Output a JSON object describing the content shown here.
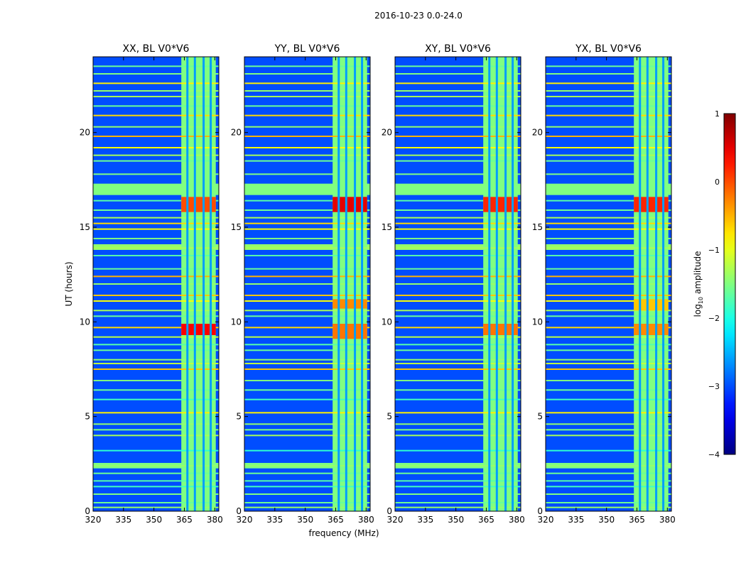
{
  "figure": {
    "suptitle": "2016-10-23 0.0-24.0",
    "xlabel": "frequency (MHz)",
    "ylabel": "UT (hours)",
    "colorbar_label_prefix": "log",
    "colorbar_label_sub": "10",
    "colorbar_label_suffix": " amplitude",
    "colorbar_ticks": [
      "1",
      "0",
      "−1",
      "−2",
      "−3",
      "−4"
    ]
  },
  "chart_data": {
    "type": "heatmap",
    "x": {
      "label": "frequency (MHz)",
      "range": [
        320,
        382
      ],
      "ticks": [
        320,
        335,
        350,
        365,
        380
      ]
    },
    "y": {
      "label": "UT (hours)",
      "range": [
        0,
        24
      ],
      "ticks": [
        0,
        5,
        10,
        15,
        20
      ]
    },
    "colorbar": {
      "label": "log10 amplitude",
      "range": [
        -4,
        1
      ],
      "ticks": [
        1,
        0,
        -1,
        -2,
        -3,
        -4
      ],
      "colormap": "jet"
    },
    "background_level": -3.0,
    "panels": [
      {
        "title": "XX, BL V0*V6",
        "band_peaks": [
          {
            "t0": 9.3,
            "t1": 9.9,
            "level": 0.4
          },
          {
            "t0": 15.8,
            "t1": 16.6,
            "level": 0.0
          }
        ]
      },
      {
        "title": "YY, BL V0*V6",
        "band_peaks": [
          {
            "t0": 9.1,
            "t1": 9.9,
            "level": -0.2
          },
          {
            "t0": 10.7,
            "t1": 11.2,
            "level": -0.3
          },
          {
            "t0": 15.8,
            "t1": 16.6,
            "level": 0.5
          }
        ]
      },
      {
        "title": "XY, BL V0*V6",
        "band_peaks": [
          {
            "t0": 9.3,
            "t1": 9.9,
            "level": -0.2
          },
          {
            "t0": 15.8,
            "t1": 16.6,
            "level": 0.2
          }
        ]
      },
      {
        "title": "YX, BL V0*V6",
        "band_peaks": [
          {
            "t0": 9.3,
            "t1": 9.9,
            "level": -0.3
          },
          {
            "t0": 10.6,
            "t1": 11.2,
            "level": -0.6
          },
          {
            "t0": 15.8,
            "t1": 16.6,
            "level": 0.2
          }
        ]
      }
    ],
    "rfi_band": {
      "f0": 363.5,
      "f1": 380.5,
      "level": -1.5
    },
    "rfi_band_gaps_mhz": [
      366.5,
      370.2,
      374.5,
      378.0
    ],
    "rfi_lines_ut": [
      {
        "t": 0.2,
        "level": -1.4
      },
      {
        "t": 0.45,
        "level": -1.6
      },
      {
        "t": 0.9,
        "level": -1.5
      },
      {
        "t": 1.3,
        "level": -1.8
      },
      {
        "t": 1.6,
        "level": -1.7
      },
      {
        "t": 2.0,
        "level": -1.6
      },
      {
        "t": 2.3,
        "level": -1.5
      },
      {
        "t": 2.4,
        "level": -1.4
      },
      {
        "t": 2.5,
        "level": -1.5
      },
      {
        "t": 3.2,
        "level": -1.9
      },
      {
        "t": 4.0,
        "level": -1.3
      },
      {
        "t": 4.3,
        "level": -1.5
      },
      {
        "t": 4.6,
        "level": -1.4
      },
      {
        "t": 5.2,
        "level": -0.8
      },
      {
        "t": 5.9,
        "level": -1.8
      },
      {
        "t": 6.4,
        "level": -1.6
      },
      {
        "t": 6.9,
        "level": -1.5
      },
      {
        "t": 7.5,
        "level": -0.6
      },
      {
        "t": 7.8,
        "level": -1.2
      },
      {
        "t": 8.0,
        "level": -1.4
      },
      {
        "t": 8.5,
        "level": -1.6
      },
      {
        "t": 8.8,
        "level": -1.7
      },
      {
        "t": 9.2,
        "level": -1.2
      },
      {
        "t": 9.7,
        "level": -0.7
      },
      {
        "t": 10.3,
        "level": -1.6
      },
      {
        "t": 10.6,
        "level": -1.3
      },
      {
        "t": 11.1,
        "level": -0.9
      },
      {
        "t": 11.4,
        "level": -0.6
      },
      {
        "t": 12.0,
        "level": -1.4
      },
      {
        "t": 12.4,
        "level": -0.5
      },
      {
        "t": 12.8,
        "level": -1.6
      },
      {
        "t": 13.5,
        "level": -1.7
      },
      {
        "t": 13.9,
        "level": -1.3
      },
      {
        "t": 14.4,
        "level": -1.5
      },
      {
        "t": 14.9,
        "level": -0.9
      },
      {
        "t": 15.2,
        "level": -0.7
      },
      {
        "t": 15.5,
        "level": -1.3
      },
      {
        "t": 15.9,
        "level": -1.6
      },
      {
        "t": 16.4,
        "level": -1.7
      },
      {
        "t": 17.8,
        "level": -1.5
      },
      {
        "t": 18.5,
        "level": -1.6
      },
      {
        "t": 18.8,
        "level": -1.3
      },
      {
        "t": 19.2,
        "level": -0.9
      },
      {
        "t": 19.8,
        "level": -0.5
      },
      {
        "t": 20.3,
        "level": -1.4
      },
      {
        "t": 20.9,
        "level": -0.7
      },
      {
        "t": 21.4,
        "level": -1.6
      },
      {
        "t": 21.9,
        "level": -1.3
      },
      {
        "t": 22.2,
        "level": -1.4
      },
      {
        "t": 22.6,
        "level": -0.8
      },
      {
        "t": 23.1,
        "level": -1.5
      },
      {
        "t": 23.5,
        "level": -1.6
      }
    ],
    "rfi_wide_bands_ut": [
      {
        "t0": 16.7,
        "t1": 17.3,
        "level": -1.5
      },
      {
        "t0": 13.8,
        "t1": 14.1,
        "level": -1.4
      },
      {
        "t0": 2.3,
        "t1": 2.55,
        "level": -1.5
      }
    ]
  }
}
